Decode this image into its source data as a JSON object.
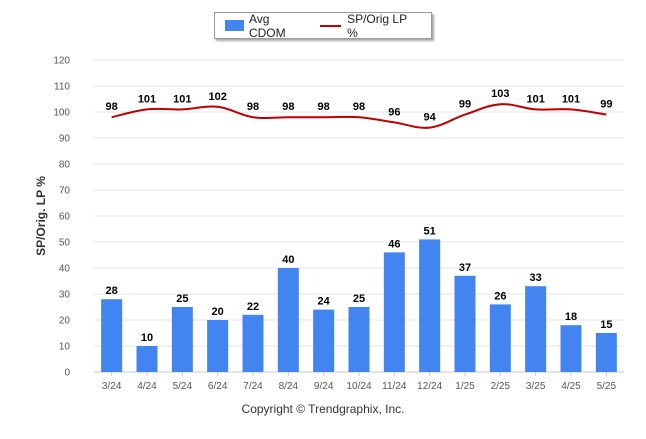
{
  "legend": {
    "bar_label": "Avg CDOM",
    "line_label": "SP/Orig LP %"
  },
  "copyright": "Copyright © Trendgraphix, Inc.",
  "colors": {
    "bar": "#4285f0",
    "line": "#c00000",
    "grid": "#e6e6e6",
    "axis_text": "#555555"
  },
  "chart_data": {
    "type": "bar",
    "ylabel": "SP/Orig. LP %",
    "ylim": [
      0,
      120
    ],
    "yticks": [
      0,
      10,
      20,
      30,
      40,
      50,
      60,
      70,
      80,
      90,
      100,
      110,
      120
    ],
    "grid": true,
    "legend_position": "top-center",
    "categories": [
      "3/24",
      "4/24",
      "5/24",
      "6/24",
      "7/24",
      "8/24",
      "9/24",
      "10/24",
      "11/24",
      "12/24",
      "1/25",
      "2/25",
      "3/25",
      "4/25",
      "5/25"
    ],
    "series": [
      {
        "name": "Avg CDOM",
        "type": "bar",
        "values": [
          28,
          10,
          25,
          20,
          22,
          40,
          24,
          25,
          46,
          51,
          37,
          26,
          33,
          18,
          15
        ]
      },
      {
        "name": "SP/Orig LP %",
        "type": "line",
        "values": [
          98,
          101,
          101,
          102,
          98,
          98,
          98,
          98,
          96,
          94,
          99,
          103,
          101,
          101,
          99
        ]
      }
    ]
  }
}
